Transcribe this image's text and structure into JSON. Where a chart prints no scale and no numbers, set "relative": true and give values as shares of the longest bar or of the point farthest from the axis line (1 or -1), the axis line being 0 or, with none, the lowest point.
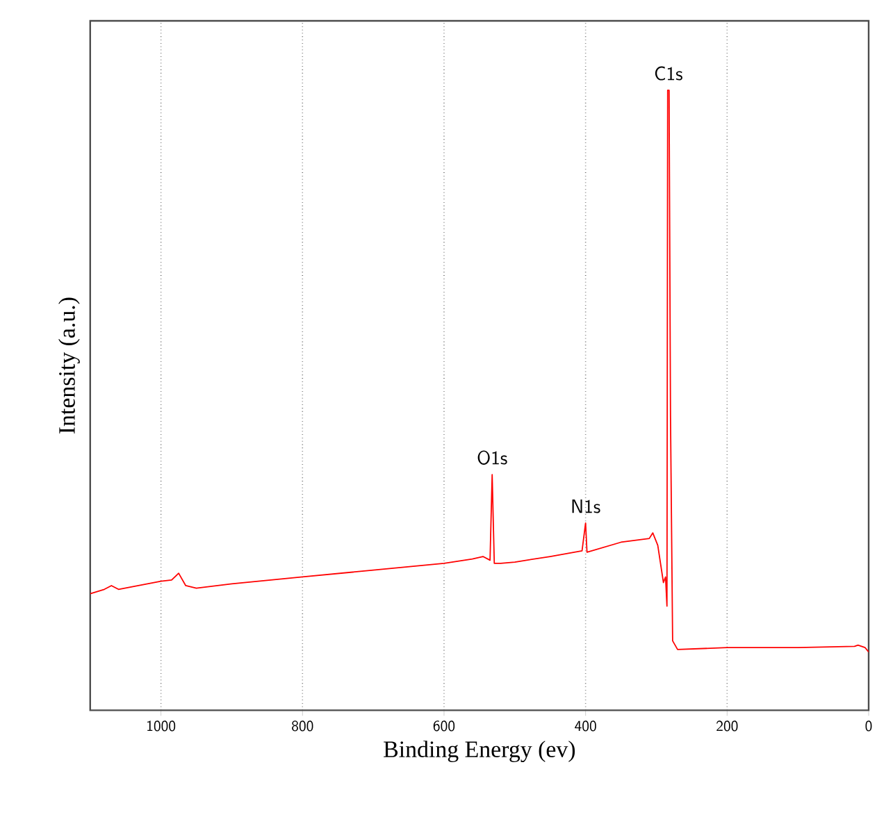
{
  "chart_data": {
    "type": "line",
    "xlabel": "Binding Energy (ev)",
    "ylabel": "Intensity (a.u.)",
    "relative": true,
    "xlim": [
      1100,
      0
    ],
    "xticks": [
      1000,
      800,
      600,
      400,
      200,
      0
    ],
    "grid": "x",
    "marker": "none",
    "line_style": "solid",
    "annotations": [
      {
        "text": "O1s",
        "x": 532,
        "y": 0.38
      },
      {
        "text": "N1s",
        "x": 400,
        "y": 0.302
      },
      {
        "text": "C1s",
        "x": 283,
        "y": 1.0
      }
    ],
    "series": [
      {
        "color": "#ff0000",
        "x": [
          1100,
          1080,
          1070,
          1060,
          1000,
          985,
          975,
          965,
          950,
          900,
          800,
          700,
          600,
          560,
          545,
          535,
          532,
          529,
          520,
          500,
          450,
          405,
          400,
          398,
          350,
          310,
          305,
          298,
          290,
          287,
          285,
          284,
          282,
          280,
          277,
          270,
          200,
          100,
          20,
          15,
          5,
          0
        ],
        "values": [
          0.188,
          0.195,
          0.201,
          0.195,
          0.208,
          0.21,
          0.221,
          0.201,
          0.197,
          0.204,
          0.215,
          0.226,
          0.237,
          0.244,
          0.248,
          0.242,
          0.38,
          0.237,
          0.237,
          0.239,
          0.248,
          0.257,
          0.302,
          0.255,
          0.271,
          0.277,
          0.286,
          0.266,
          0.206,
          0.215,
          0.168,
          1.0,
          1.0,
          0.475,
          0.112,
          0.098,
          0.101,
          0.101,
          0.103,
          0.105,
          0.101,
          0.094
        ]
      }
    ]
  }
}
